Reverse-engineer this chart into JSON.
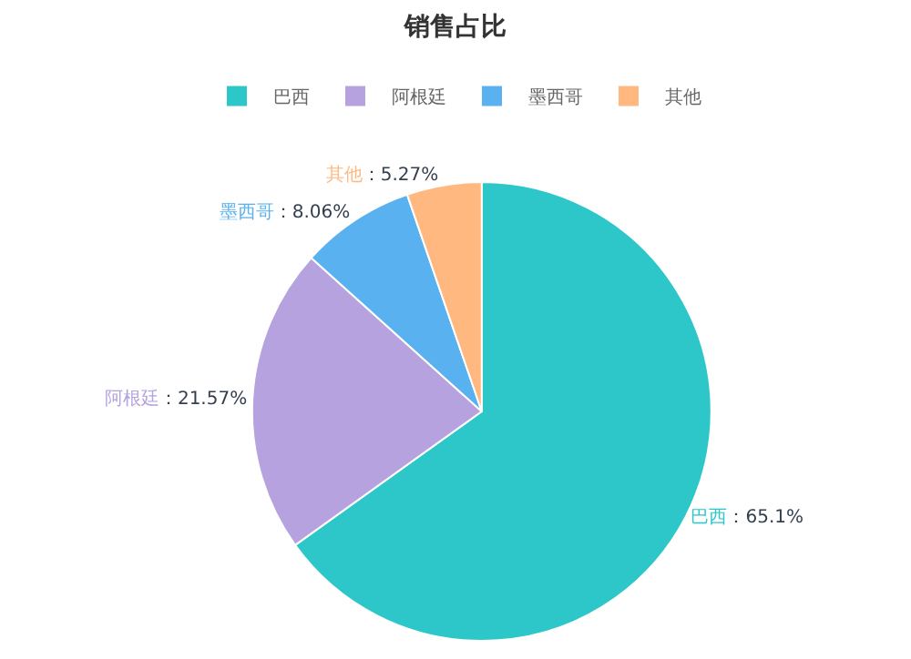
{
  "chart_data": {
    "type": "pie",
    "title": "销售占比",
    "categories": [
      "巴西",
      "阿根廷",
      "墨西哥",
      "其他"
    ],
    "values": [
      65.1,
      21.57,
      8.06,
      5.27
    ],
    "value_labels": [
      "：65.1%",
      "：21.57%",
      "：8.06%",
      "：5.27%"
    ],
    "colors": [
      "#2ec7c9",
      "#b6a2de",
      "#5ab1ef",
      "#ffb980"
    ],
    "legend": "top"
  }
}
